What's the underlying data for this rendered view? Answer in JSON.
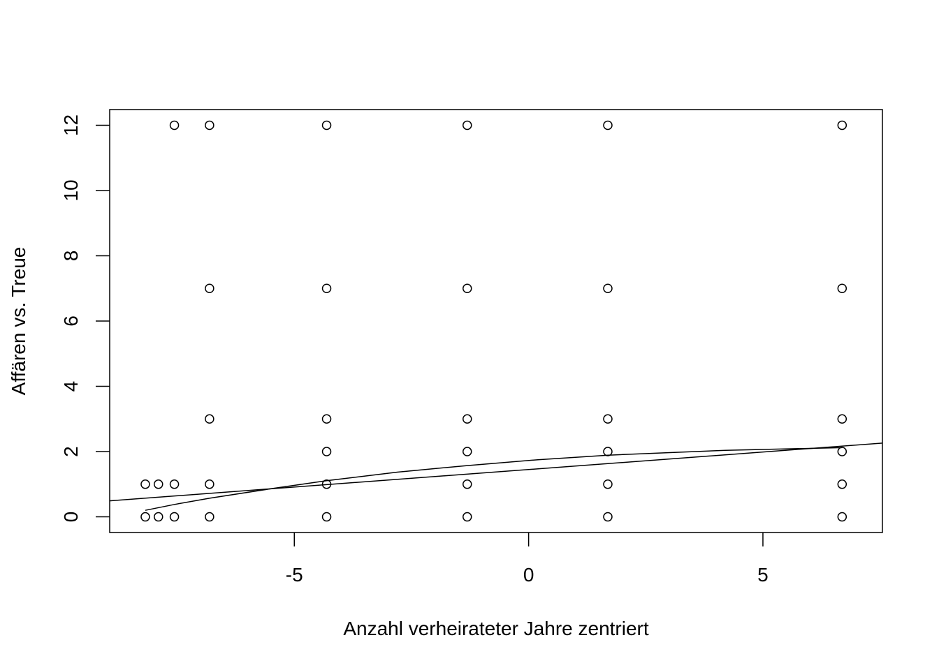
{
  "chart_data": {
    "type": "scatter",
    "title": "",
    "xlabel": "Anzahl verheirateter Jahre zentriert",
    "ylabel": "Affären vs. Treue",
    "xlim": [
      -8.94,
      7.55
    ],
    "ylim": [
      -0.48,
      12.48
    ],
    "xticks": [
      -5,
      0,
      5
    ],
    "xtick_labels": [
      "-5",
      "0",
      "5"
    ],
    "yticks": [
      0,
      2,
      4,
      6,
      8,
      10,
      12
    ],
    "ytick_labels": [
      "0",
      "2",
      "4",
      "6",
      "8",
      "10",
      "12"
    ],
    "grid": false,
    "points": [
      {
        "x": -8.18,
        "y": 1
      },
      {
        "x": -7.9,
        "y": 1
      },
      {
        "x": -7.56,
        "y": 1
      },
      {
        "x": -6.81,
        "y": 1
      },
      {
        "x": -8.18,
        "y": 0
      },
      {
        "x": -7.9,
        "y": 0
      },
      {
        "x": -7.56,
        "y": 0
      },
      {
        "x": -6.81,
        "y": 0
      },
      {
        "x": -7.56,
        "y": 12
      },
      {
        "x": -6.81,
        "y": 12
      },
      {
        "x": -6.81,
        "y": 7
      },
      {
        "x": -6.81,
        "y": 3
      },
      {
        "x": -4.31,
        "y": 12
      },
      {
        "x": -4.31,
        "y": 7
      },
      {
        "x": -4.31,
        "y": 3
      },
      {
        "x": -4.31,
        "y": 2
      },
      {
        "x": -4.31,
        "y": 1
      },
      {
        "x": -4.31,
        "y": 0
      },
      {
        "x": -1.31,
        "y": 12
      },
      {
        "x": -1.31,
        "y": 7
      },
      {
        "x": -1.31,
        "y": 3
      },
      {
        "x": -1.31,
        "y": 2
      },
      {
        "x": -1.31,
        "y": 1
      },
      {
        "x": -1.31,
        "y": 0
      },
      {
        "x": 1.69,
        "y": 12
      },
      {
        "x": 1.69,
        "y": 7
      },
      {
        "x": 1.69,
        "y": 3
      },
      {
        "x": 1.69,
        "y": 2
      },
      {
        "x": 1.69,
        "y": 1
      },
      {
        "x": 1.69,
        "y": 0
      },
      {
        "x": 6.69,
        "y": 12
      },
      {
        "x": 6.69,
        "y": 7
      },
      {
        "x": 6.69,
        "y": 3
      },
      {
        "x": 6.69,
        "y": 2
      },
      {
        "x": 6.69,
        "y": 1
      },
      {
        "x": 6.69,
        "y": 0
      }
    ],
    "lines": [
      {
        "type": "linear",
        "x": [
          -8.94,
          7.55
        ],
        "y": [
          0.49,
          2.26
        ]
      },
      {
        "type": "curve",
        "x": [
          -8.18,
          -7.56,
          -6.81,
          -5.5,
          -4.31,
          -2.8,
          -1.31,
          0.2,
          1.69,
          4.2,
          6.69
        ],
        "y": [
          0.2,
          0.38,
          0.57,
          0.86,
          1.11,
          1.37,
          1.57,
          1.75,
          1.89,
          2.04,
          2.12
        ]
      }
    ]
  }
}
